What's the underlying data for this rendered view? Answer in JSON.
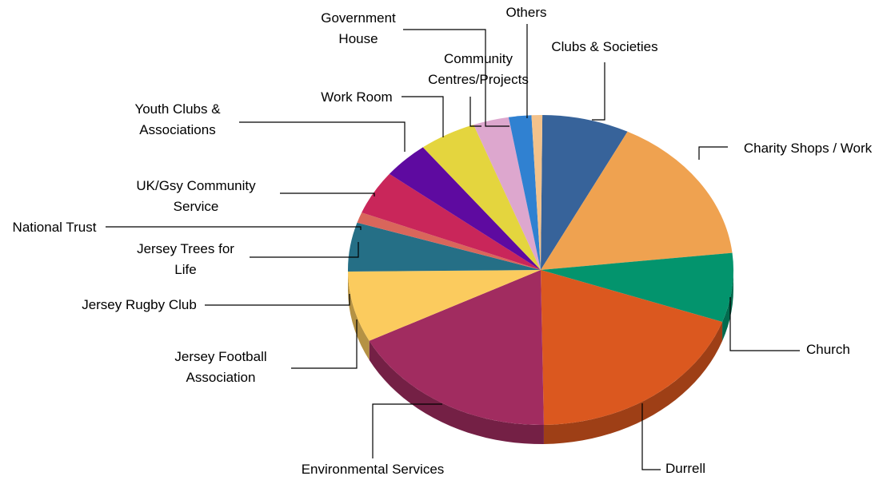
{
  "chart_data": {
    "type": "pie",
    "title": "",
    "legend": "none",
    "slices": [
      {
        "label": "Clubs & Societies",
        "value": 7.3,
        "color": "#37639A"
      },
      {
        "label": "Charity Shops / Work",
        "value": 15.8,
        "color": "#EFA250"
      },
      {
        "label": "Church",
        "value": 7.2,
        "color": "#03946D"
      },
      {
        "label": "Durrell",
        "value": 19.3,
        "color": "#DB581F"
      },
      {
        "label": "Environmental Services",
        "value": 17.7,
        "color": "#A12C60"
      },
      {
        "label": "Jersey Football Association",
        "value": 7.4,
        "color": "#FBCB5E"
      },
      {
        "label": "Jersey Rugby Club",
        "value": 5.1,
        "color": "#256F86"
      },
      {
        "label": "Jersey Trees for Life",
        "value": 0.0,
        "color": "#256F86"
      },
      {
        "label": "National Trust",
        "value": 1.1,
        "color": "#D9665B"
      },
      {
        "label": "UK/Gsy Community Service",
        "value": 4.6,
        "color": "#C9265A"
      },
      {
        "label": "Youth Clubs & Associations",
        "value": 3.9,
        "color": "#5E0AA0"
      },
      {
        "label": "Work Room",
        "value": 4.8,
        "color": "#E4D53E"
      },
      {
        "label": "Community Centres/Projects",
        "value": 3.0,
        "color": "#DDA7CE"
      },
      {
        "label": "Government House",
        "value": 1.9,
        "color": "#3081D1"
      },
      {
        "label": "Others",
        "value": 0.9,
        "color": "#F3C28B"
      }
    ]
  }
}
